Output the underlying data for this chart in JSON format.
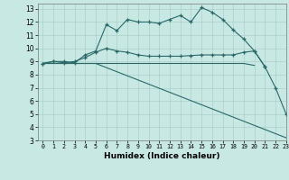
{
  "line_color": "#2a6868",
  "bg_color": "#c8e8e4",
  "grid_color": "#aad0cc",
  "xlabel": "Humidex (Indice chaleur)",
  "xlim": [
    -0.5,
    23
  ],
  "ylim": [
    3,
    13.4
  ],
  "xticks": [
    0,
    1,
    2,
    3,
    4,
    5,
    6,
    7,
    8,
    9,
    10,
    11,
    12,
    13,
    14,
    15,
    16,
    17,
    18,
    19,
    20,
    21,
    22,
    23
  ],
  "yticks": [
    3,
    4,
    5,
    6,
    7,
    8,
    9,
    10,
    11,
    12,
    13
  ],
  "line1_x": [
    0,
    1,
    2,
    3,
    4,
    5,
    6,
    7,
    8,
    9,
    10,
    11,
    12,
    13,
    14,
    15,
    16,
    17,
    18,
    19,
    20,
    21,
    22,
    23
  ],
  "line1_y": [
    8.85,
    9.0,
    9.0,
    8.9,
    9.5,
    9.8,
    11.8,
    11.35,
    12.2,
    12.0,
    12.0,
    11.9,
    12.2,
    12.5,
    12.0,
    13.1,
    12.75,
    12.2,
    11.4,
    10.7,
    9.8,
    8.6,
    7.0,
    5.0
  ],
  "line2_x": [
    0,
    1,
    2,
    3,
    4,
    5,
    6,
    7,
    8,
    9,
    10,
    11,
    12,
    13,
    14,
    15,
    16,
    17,
    18,
    19,
    20,
    21
  ],
  "line2_y": [
    8.85,
    9.0,
    8.9,
    9.0,
    9.3,
    9.7,
    10.0,
    9.8,
    9.7,
    9.5,
    9.4,
    9.4,
    9.4,
    9.4,
    9.45,
    9.5,
    9.5,
    9.5,
    9.5,
    9.7,
    9.8,
    8.6
  ],
  "line3_x": [
    0,
    1,
    2,
    3,
    4,
    5,
    6,
    7,
    8,
    9,
    10,
    11,
    12,
    13,
    14,
    15,
    16,
    17,
    18,
    19,
    20
  ],
  "line3_y": [
    8.85,
    8.85,
    8.85,
    8.85,
    8.85,
    8.85,
    8.85,
    8.85,
    8.85,
    8.85,
    8.85,
    8.85,
    8.85,
    8.85,
    8.85,
    8.85,
    8.85,
    8.85,
    8.85,
    8.85,
    8.7
  ],
  "line4_x": [
    0,
    5,
    23
  ],
  "line4_y": [
    8.85,
    8.85,
    3.2
  ]
}
